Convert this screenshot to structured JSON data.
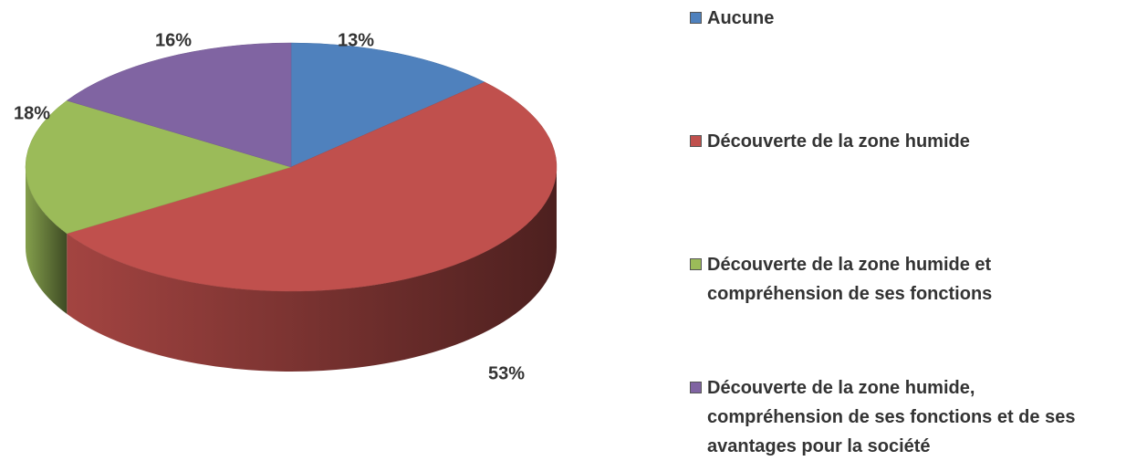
{
  "chart_data": {
    "type": "pie",
    "categories": [
      "Aucune",
      "Découverte de la zone humide",
      "Découverte de la zone humide et compréhension de ses fonctions",
      "Découverte de la zone humide, compréhension de ses fonctions et de ses avantages pour la société"
    ],
    "values": [
      13,
      53,
      18,
      16
    ],
    "value_labels": [
      "13%",
      "53%",
      "18%",
      "16%"
    ],
    "colors": [
      "#4f81bd",
      "#c0504d",
      "#9bbb59",
      "#8064a2"
    ],
    "legend": "right"
  }
}
